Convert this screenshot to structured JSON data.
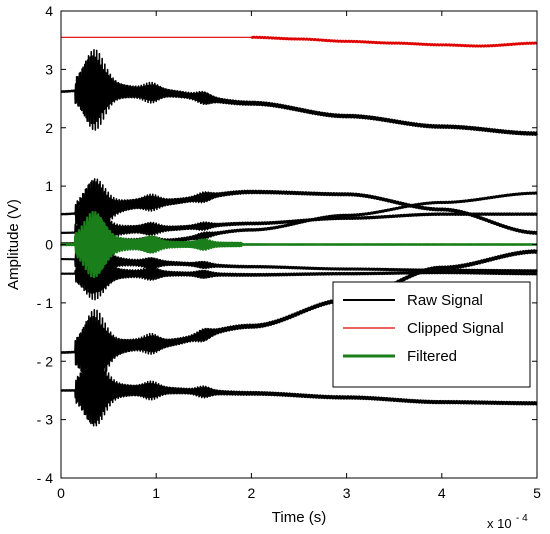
{
  "chart_data": {
    "type": "line",
    "xlabel": "Time (s)",
    "ylabel": "Amplitude (V)",
    "x_multiplier": {
      "base": "x 10",
      "exponent": "- 4"
    },
    "xlim": [
      0,
      5
    ],
    "ylim": [
      -4,
      4
    ],
    "x_ticks": [
      "0",
      "1",
      "2",
      "3",
      "4",
      "5"
    ],
    "y_ticks": [
      "- 4",
      "- 3",
      "- 2",
      "- 1",
      "0",
      "1",
      "2",
      "3",
      "4"
    ],
    "grid": false,
    "legend_position": "lower-right",
    "legend": [
      {
        "label": "Raw Signal",
        "color": "#000000"
      },
      {
        "label": "Clipped Signal",
        "color": "#e00000"
      },
      {
        "label": "Filtered",
        "color": "#1a7f1a"
      }
    ],
    "series": [
      {
        "name": "Raw Signal",
        "color": "#000000",
        "burst_center": 0.35,
        "burst_amplitude": 0.55,
        "x": [
          0,
          0.3,
          1,
          2,
          3,
          4,
          5
        ],
        "y": [
          2.62,
          2.65,
          2.6,
          2.42,
          2.2,
          2.02,
          1.9
        ]
      },
      {
        "name": "Raw Signal",
        "color": "#000000",
        "burst_center": 0.35,
        "burst_amplitude": 0.45,
        "x": [
          0,
          1,
          2,
          3,
          4,
          5
        ],
        "y": [
          0.52,
          0.72,
          0.9,
          0.86,
          0.6,
          0.2
        ]
      },
      {
        "name": "Raw Signal",
        "color": "#000000",
        "burst_center": 0.35,
        "burst_amplitude": 0.35,
        "x": [
          0,
          1,
          2,
          3,
          4,
          5
        ],
        "y": [
          0.2,
          0.27,
          0.36,
          0.45,
          0.52,
          0.52
        ]
      },
      {
        "name": "Raw Signal",
        "color": "#000000",
        "burst_center": 0.35,
        "burst_amplitude": 0.3,
        "x": [
          0,
          1,
          2,
          3,
          4,
          5
        ],
        "y": [
          0.02,
          0.05,
          0.25,
          0.5,
          0.72,
          0.88
        ]
      },
      {
        "name": "Raw Signal",
        "color": "#000000",
        "burst_center": 0.35,
        "burst_amplitude": 0.3,
        "x": [
          0,
          1,
          2,
          3,
          4,
          5
        ],
        "y": [
          -0.25,
          -0.32,
          -0.38,
          -0.42,
          -0.44,
          -0.45
        ]
      },
      {
        "name": "Raw Signal",
        "color": "#000000",
        "burst_center": 0.35,
        "burst_amplitude": 0.35,
        "x": [
          0,
          1,
          2,
          3,
          4,
          5
        ],
        "y": [
          -0.5,
          -0.5,
          -0.52,
          -0.5,
          -0.48,
          -0.5
        ]
      },
      {
        "name": "Raw Signal",
        "color": "#000000",
        "burst_center": 0.35,
        "burst_amplitude": 0.55,
        "x": [
          0,
          1,
          2,
          3,
          4,
          5
        ],
        "y": [
          -1.85,
          -1.7,
          -1.4,
          -0.95,
          -0.4,
          -0.12
        ]
      },
      {
        "name": "Raw Signal",
        "color": "#000000",
        "burst_center": 0.35,
        "burst_amplitude": 0.5,
        "x": [
          0,
          1,
          2,
          3,
          4,
          5
        ],
        "y": [
          -2.5,
          -2.5,
          -2.55,
          -2.62,
          -2.7,
          -2.72
        ]
      },
      {
        "name": "Clipped Signal",
        "color": "#e00000",
        "burst_center": 2.5,
        "burst_amplitude": 0.02,
        "x": [
          0,
          1,
          2,
          2.5,
          3,
          3.5,
          4,
          4.4,
          5
        ],
        "y": [
          3.55,
          3.55,
          3.55,
          3.52,
          3.48,
          3.45,
          3.42,
          3.4,
          3.45
        ]
      },
      {
        "name": "Filtered",
        "color": "#1a7f1a",
        "burst_center": 0.35,
        "burst_amplitude": 0.45,
        "x": [
          0,
          5
        ],
        "y": [
          0,
          0
        ]
      }
    ]
  }
}
